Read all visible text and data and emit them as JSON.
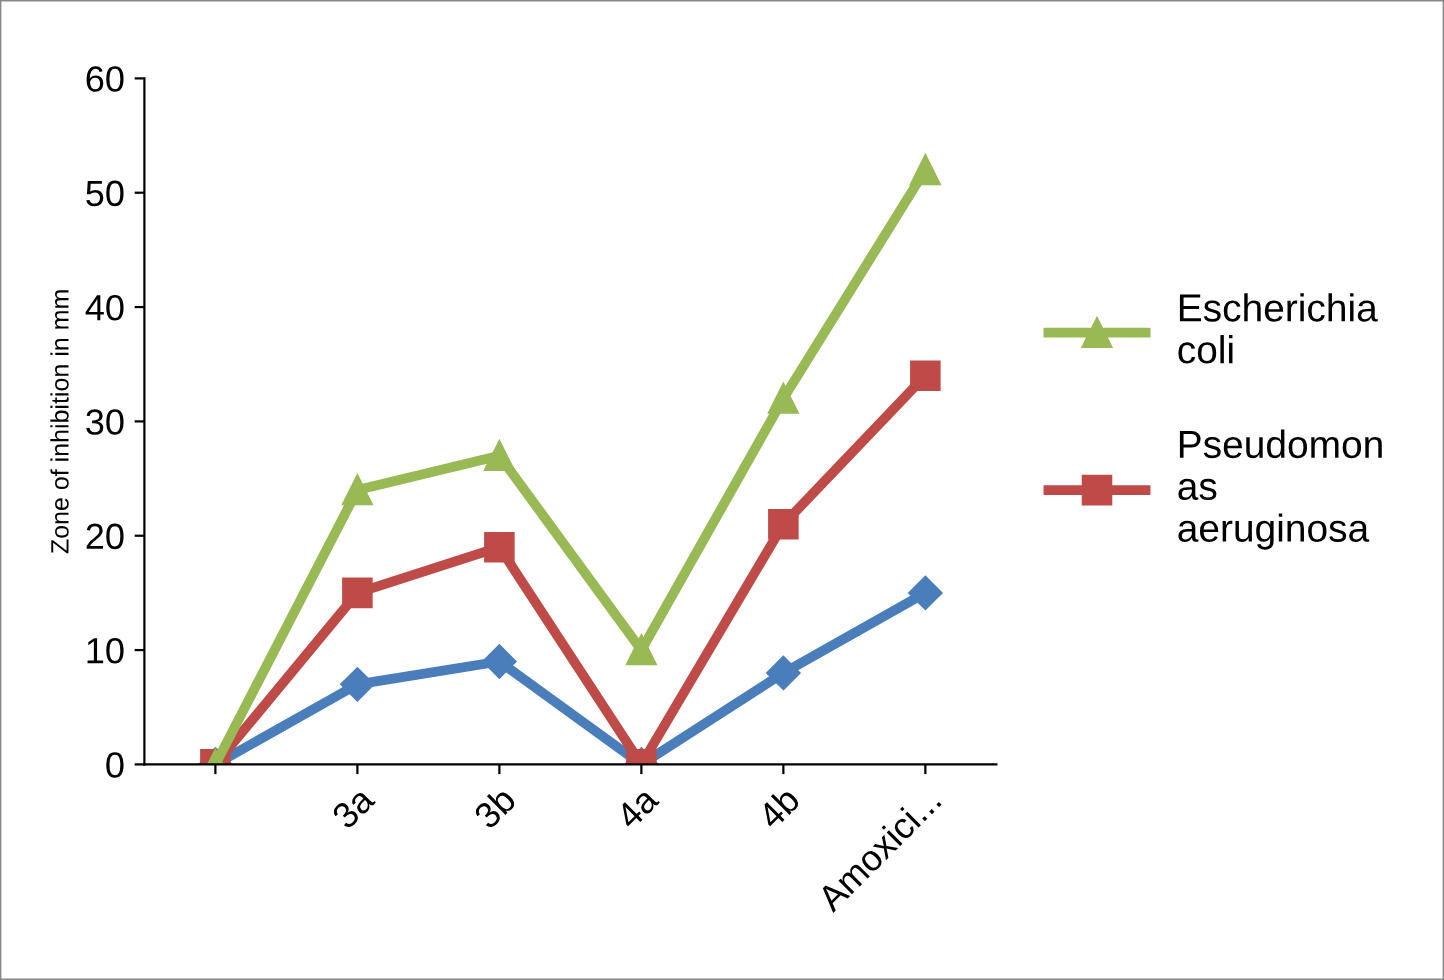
{
  "chart_data": {
    "type": "line",
    "ylabel": "Zone of inhibition in mm",
    "categories": [
      null,
      "3a",
      "3b",
      "4a",
      "4b",
      "Amoxici..."
    ],
    "series": [
      {
        "color": "#4a7ebb",
        "marker": "diamond",
        "values": [
          0,
          7,
          9,
          0,
          8,
          15
        ]
      },
      {
        "name": "Pseudomon\nas\naeruginosa",
        "color": "#be4b48",
        "marker": "square",
        "values": [
          0,
          15,
          19,
          0,
          21,
          34
        ]
      },
      {
        "name": "Escherichia\ncoli",
        "color": "#98b954",
        "marker": "triangle",
        "values": [
          0,
          24,
          27,
          10,
          32,
          52
        ]
      }
    ],
    "ylim": [
      0,
      60
    ],
    "yticks": [
      0,
      10,
      20,
      30,
      40,
      50,
      60
    ],
    "grid": false,
    "legend": "right",
    "line_style": "solid"
  }
}
